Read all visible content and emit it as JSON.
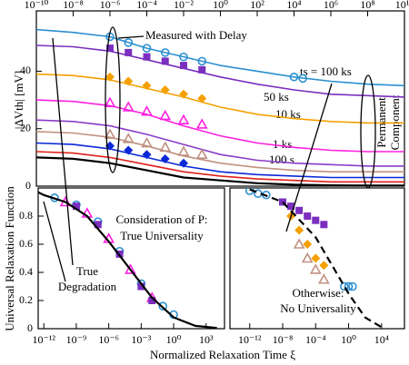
{
  "chart_data": [
    {
      "type": "line",
      "ylabel": "|ΔVth| [mV]",
      "log_x": true,
      "xlim": [
        1e-10,
        10000000000.0
      ],
      "ylim": [
        0,
        61
      ],
      "xticks": [
        {
          "value": 1e-10,
          "label": "10⁻¹⁰"
        },
        {
          "value": 1e-08,
          "label": "10⁻⁸"
        },
        {
          "value": 1e-06,
          "label": "10⁻⁶"
        },
        {
          "value": 0.0001,
          "label": "10⁻⁴"
        },
        {
          "value": 0.01,
          "label": "10⁻²"
        },
        {
          "value": 1,
          "label": "10⁰"
        },
        {
          "value": 100.0,
          "label": "10²"
        },
        {
          "value": 10000.0,
          "label": "10⁴"
        },
        {
          "value": 1000000.0,
          "label": "10⁶"
        },
        {
          "value": 100000000.0,
          "label": "10⁸"
        },
        {
          "value": 10000000000.0,
          "label": "10¹⁰"
        }
      ],
      "yticks": [
        0,
        20,
        40
      ],
      "annotations": [
        "Measured with Delay",
        "ts = 100 ks",
        "50 ks",
        "10 ks",
        "1 ks",
        "100 s",
        "Permanent",
        "Component"
      ],
      "series": [
        {
          "color": "#2b8fd0",
          "x": [
            1e-10,
            1e-08,
            1e-06,
            0.0001,
            0.01,
            1,
            100.0,
            10000.0,
            1000000.0,
            100000000.0,
            10000000000.0
          ],
          "values": [
            54.5,
            53.5,
            52,
            48,
            45,
            42,
            40,
            38,
            36.5,
            35.5,
            35
          ]
        },
        {
          "color": "#7a2fbf",
          "x": [
            1e-10,
            1e-08,
            1e-06,
            0.0001,
            0.01,
            1,
            100.0,
            10000.0,
            1000000.0,
            100000000.0,
            10000000000.0
          ],
          "values": [
            49,
            48.5,
            47,
            44,
            41,
            38,
            35.5,
            33.5,
            32,
            31.5,
            31
          ]
        },
        {
          "color": "#f5a000",
          "x": [
            1e-10,
            1e-08,
            1e-06,
            0.0001,
            0.01,
            1,
            100.0,
            10000.0,
            1000000.0,
            100000000.0,
            10000000000.0
          ],
          "values": [
            39,
            38.5,
            37,
            34,
            31,
            27.5,
            25,
            23.5,
            22.5,
            22,
            22
          ]
        },
        {
          "color": "#ff20e0",
          "x": [
            1e-10,
            1e-08,
            1e-06,
            0.0001,
            0.01,
            1,
            100.0,
            10000.0,
            1000000.0,
            100000000.0,
            10000000000.0
          ],
          "values": [
            30,
            29.5,
            28,
            25,
            21,
            17.5,
            15,
            13.5,
            12.5,
            12,
            12
          ]
        },
        {
          "color": "#8a3cc8",
          "x": [
            1e-10,
            1e-08,
            1e-06,
            0.0001,
            0.01,
            1,
            100.0,
            10000.0,
            1000000.0,
            100000000.0,
            10000000000.0
          ],
          "values": [
            23,
            22.5,
            21,
            18,
            14.5,
            11,
            9,
            8,
            7.5,
            7,
            7
          ]
        },
        {
          "color": "#c09080",
          "x": [
            1e-10,
            1e-08,
            1e-06,
            0.0001,
            0.01,
            1,
            100.0,
            10000.0,
            1000000.0,
            100000000.0,
            10000000000.0
          ],
          "values": [
            19,
            18.5,
            17,
            14,
            10.5,
            8,
            6.5,
            5.5,
            5,
            5,
            5
          ]
        },
        {
          "color": "#0a28d8",
          "x": [
            1e-10,
            1e-08,
            1e-06,
            0.0001,
            0.01,
            1,
            100.0,
            10000.0,
            1000000.0,
            100000000.0,
            10000000000.0
          ],
          "values": [
            15,
            14.5,
            13,
            10,
            7,
            5,
            4,
            3.5,
            3,
            3,
            3
          ]
        },
        {
          "color": "#e0201a",
          "x": [
            1e-10,
            1e-08,
            1e-06,
            0.0001,
            0.01,
            1,
            100.0,
            10000.0,
            1000000.0,
            100000000.0,
            10000000000.0
          ],
          "values": [
            12,
            11.5,
            10,
            7.5,
            5,
            3.5,
            2.5,
            2,
            1.5,
            1.5,
            1.5
          ]
        },
        {
          "color": "#000000",
          "x": [
            1e-10,
            1e-08,
            1e-06,
            0.0001,
            0.01,
            1,
            100.0,
            10000.0,
            1000000.0,
            100000000.0,
            10000000000.0
          ],
          "values": [
            10,
            9.5,
            8,
            5.5,
            3,
            2,
            1,
            0.5,
            0.3,
            0.2,
            0.2
          ]
        },
        {
          "color": "#2b8fd0",
          "marker": "circle",
          "x": [
            1e-06,
            1e-05,
            0.0001,
            0.001,
            0.01,
            0.1,
            10000.0,
            30000.0
          ],
          "values": [
            52,
            50,
            48,
            46.5,
            45,
            43.5,
            38,
            37.5
          ]
        },
        {
          "color": "#7a2fbf",
          "marker": "square",
          "x": [
            1e-06,
            1e-05,
            0.0001,
            0.001,
            0.01,
            0.1
          ],
          "values": [
            48,
            46.5,
            45,
            43.5,
            42,
            40.5
          ]
        },
        {
          "color": "#f5a000",
          "marker": "diamond",
          "x": [
            1e-06,
            1e-05,
            0.0001,
            0.001,
            0.01,
            0.1
          ],
          "values": [
            38,
            36.5,
            35,
            33.5,
            32,
            30.5
          ]
        },
        {
          "color": "#ff20e0",
          "marker": "triangle",
          "x": [
            1e-06,
            1e-05,
            0.0001,
            0.001,
            0.01,
            0.1
          ],
          "values": [
            29,
            27.5,
            26,
            24.5,
            23,
            21.5
          ]
        },
        {
          "color": "#c09080",
          "marker": "triangle",
          "x": [
            1e-06,
            1e-05,
            0.0001,
            0.001,
            0.01,
            0.1
          ],
          "values": [
            18,
            16.5,
            15,
            13.5,
            12,
            11
          ]
        },
        {
          "color": "#0a28d8",
          "marker": "diamond",
          "x": [
            1e-06,
            1e-05,
            0.0001,
            0.001,
            0.01
          ],
          "values": [
            14,
            12.5,
            11,
            9.5,
            8
          ]
        }
      ]
    },
    {
      "type": "line",
      "xlabel": "Normalized Relaxation Time ξ",
      "ylabel": "Universal Relaxation Function",
      "log_x": true,
      "xlim": [
        3e-13,
        50000.0
      ],
      "ylim": [
        0,
        1
      ],
      "xticks": [
        {
          "value": 1e-12,
          "label": "10⁻¹²"
        },
        {
          "value": 1e-09,
          "label": "10⁻⁹"
        },
        {
          "value": 1e-06,
          "label": "10⁻⁶"
        },
        {
          "value": 0.001,
          "label": "10⁻³"
        },
        {
          "value": 1,
          "label": "10⁰"
        },
        {
          "value": 1000.0,
          "label": "10³"
        }
      ],
      "yticks": [
        0,
        0.2,
        0.4,
        0.6,
        0.8
      ],
      "annotations": [
        "Consideration of P:",
        "True Universality",
        "True",
        "Degradation"
      ],
      "series": [
        {
          "color": "#2b8fd0",
          "marker": "circle",
          "x": [
            1e-11,
            1e-09,
            1e-07,
            1e-05,
            0.001,
            0.1,
            1
          ],
          "values": [
            0.93,
            0.88,
            0.76,
            0.55,
            0.32,
            0.16,
            0.1
          ]
        },
        {
          "color": "#ff20e0",
          "marker": "triangle",
          "x": [
            1e-10,
            1e-08,
            1e-06,
            0.0001,
            0.01
          ],
          "values": [
            0.9,
            0.82,
            0.64,
            0.42,
            0.22
          ]
        },
        {
          "color": "#7a2fbf",
          "marker": "square",
          "x": [
            1e-09,
            1e-07,
            1e-05,
            0.001,
            0.01
          ],
          "values": [
            0.87,
            0.74,
            0.53,
            0.3,
            0.2
          ]
        },
        {
          "color": "#000000",
          "x": [
            3e-13,
            1e-12,
            1e-10,
            1e-08,
            1e-06,
            0.0001,
            0.01,
            1,
            100.0,
            10000.0
          ],
          "values": [
            0.97,
            0.95,
            0.9,
            0.8,
            0.62,
            0.42,
            0.22,
            0.08,
            0.02,
            0.005
          ]
        }
      ]
    },
    {
      "type": "line",
      "log_x": true,
      "xlim": [
        4e-15,
        6000000.0
      ],
      "ylim": [
        0,
        1
      ],
      "xticks": [
        {
          "value": 1e-12,
          "label": "10⁻¹²"
        },
        {
          "value": 1e-08,
          "label": "10⁻⁸"
        },
        {
          "value": 0.0001,
          "label": "10⁻⁴"
        },
        {
          "value": 1,
          "label": "10⁰"
        },
        {
          "value": 10000.0,
          "label": "10⁴"
        }
      ],
      "annotations": [
        "Otherwise:",
        "No Universality"
      ],
      "series": [
        {
          "color": "#2b8fd0",
          "marker": "circle",
          "x": [
            1e-12,
            1e-11,
            1e-10,
            0.3,
            1,
            3
          ],
          "values": [
            0.98,
            0.96,
            0.95,
            0.3,
            0.3,
            0.3
          ]
        },
        {
          "color": "#7a2fbf",
          "marker": "square",
          "x": [
            1e-08,
            1e-07,
            1e-06,
            1e-05,
            0.0001,
            0.001
          ],
          "values": [
            0.9,
            0.87,
            0.84,
            0.8,
            0.77,
            0.74
          ]
        },
        {
          "color": "#f5a000",
          "marker": "diamond",
          "x": [
            1e-07,
            1e-06,
            1e-05,
            0.0001,
            0.001
          ],
          "values": [
            0.8,
            0.7,
            0.6,
            0.5,
            0.45
          ]
        },
        {
          "color": "#c09080",
          "marker": "triangle",
          "x": [
            1e-06,
            1e-05,
            0.0001,
            0.001
          ],
          "values": [
            0.6,
            0.5,
            0.42,
            0.35
          ]
        },
        {
          "color": "#000000",
          "dashed": true,
          "x": [
            1e-12,
            1e-08,
            0.0001,
            0.01,
            1,
            100.0,
            10000.0
          ],
          "values": [
            0.99,
            0.9,
            0.65,
            0.45,
            0.25,
            0.08,
            0.01
          ]
        }
      ]
    }
  ]
}
